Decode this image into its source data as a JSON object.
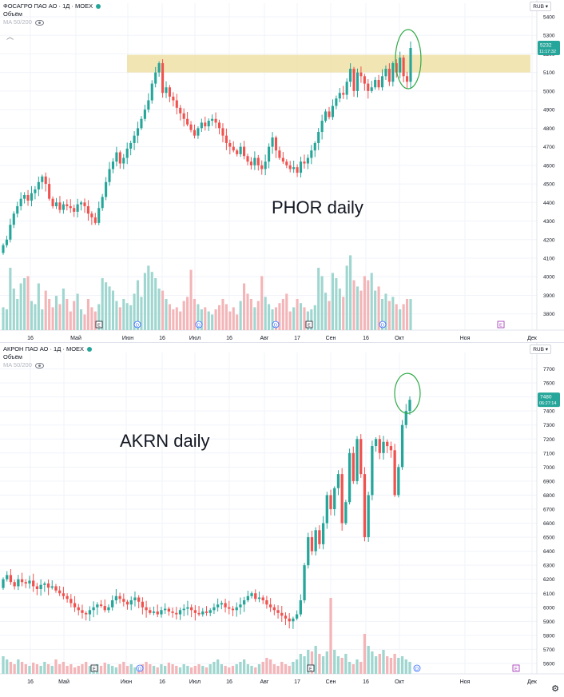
{
  "chart_data": [
    {
      "type": "candlestick",
      "ticker": "PHOR",
      "header_title": "ФОСАГРО ПАО АО · 1Д · MOEX",
      "volume_label": "Объём",
      "ma_label": "MA 50/200",
      "currency": "RUB",
      "price_label": "5232",
      "price_label_time": "11:17:32",
      "annotation_text": "PHOR daily",
      "highlight_zone": [
        5100,
        5195
      ],
      "ylim": [
        3760,
        5430
      ],
      "yticks": [
        "5400",
        "5300",
        "5200",
        "5100",
        "5000",
        "4900",
        "4800",
        "4700",
        "4600",
        "4500",
        "4400",
        "4300",
        "4200",
        "4100",
        "4000",
        "3900",
        "3800"
      ],
      "xticks": [
        "16",
        "Май",
        "Июн",
        "16",
        "Июл",
        "16",
        "Авг",
        "17",
        "Сен",
        "16",
        "Окт",
        "Ноя",
        "Дек"
      ],
      "event_markers": [
        "E",
        "D",
        "D",
        "D",
        "E",
        "D",
        "E"
      ],
      "close": [
        4170,
        4200,
        4280,
        4340,
        4380,
        4420,
        4440,
        4410,
        4450,
        4470,
        4510,
        4540,
        4500,
        4420,
        4380,
        4400,
        4360,
        4390,
        4380,
        4370,
        4350,
        4390,
        4400,
        4380,
        4340,
        4320,
        4290,
        4370,
        4430,
        4510,
        4580,
        4620,
        4670,
        4610,
        4640,
        4690,
        4720,
        4760,
        4800,
        4850,
        4900,
        4950,
        5040,
        5100,
        5150,
        4990,
        5020,
        4970,
        4950,
        4910,
        4880,
        4850,
        4820,
        4790,
        4760,
        4800,
        4830,
        4810,
        4840,
        4850,
        4830,
        4800,
        4760,
        4720,
        4700,
        4680,
        4660,
        4700,
        4650,
        4620,
        4600,
        4640,
        4600,
        4580,
        4620,
        4700,
        4750,
        4680,
        4640,
        4620,
        4600,
        4580,
        4590,
        4560,
        4620,
        4610,
        4640,
        4680,
        4720,
        4780,
        4840,
        4890,
        4860,
        4920,
        4960,
        4990,
        4980,
        5050,
        5120,
        5000,
        5100,
        5080,
        5040,
        5000,
        5020,
        5060,
        5020,
        5080,
        5120,
        5050,
        5150,
        5100,
        5180,
        5080,
        5050,
        5232
      ],
      "volume": [
        0.22,
        0.2,
        0.6,
        0.4,
        0.3,
        0.45,
        0.5,
        0.52,
        0.28,
        0.25,
        0.45,
        0.2,
        0.38,
        0.3,
        0.22,
        0.33,
        0.25,
        0.4,
        0.3,
        0.18,
        0.28,
        0.35,
        0.2,
        0.15,
        0.3,
        0.22,
        0.18,
        0.25,
        0.5,
        0.46,
        0.42,
        0.38,
        0.28,
        0.22,
        0.3,
        0.26,
        0.24,
        0.35,
        0.48,
        0.32,
        0.55,
        0.62,
        0.56,
        0.5,
        0.4,
        0.38,
        0.3,
        0.25,
        0.2,
        0.22,
        0.18,
        0.28,
        0.32,
        0.58,
        0.3,
        0.25,
        0.2,
        0.22,
        0.18,
        0.15,
        0.2,
        0.24,
        0.3,
        0.25,
        0.18,
        0.22,
        0.15,
        0.28,
        0.45,
        0.35,
        0.3,
        0.22,
        0.28,
        0.52,
        0.32,
        0.25,
        0.2,
        0.22,
        0.26,
        0.3,
        0.35,
        0.18,
        0.22,
        0.3,
        0.26,
        0.22,
        0.18,
        0.2,
        0.24,
        0.6,
        0.52,
        0.36,
        0.28,
        0.55,
        0.5,
        0.4,
        0.32,
        0.62,
        0.72,
        0.48,
        0.42,
        0.38,
        0.52,
        0.48,
        0.55,
        0.38,
        0.42,
        0.3,
        0.35,
        0.28,
        0.32,
        0.25,
        0.2,
        0.25,
        0.3,
        0.3
      ]
    },
    {
      "type": "candlestick",
      "ticker": "AKRN",
      "header_title": "АКРОН ПАО АО · 1Д · MOEX",
      "volume_label": "Объём",
      "ma_label": "MA 50/200",
      "currency": "RUB",
      "price_label": "7480",
      "price_label_time": "06:27:14",
      "annotation_text": "AKRN daily",
      "ylim": [
        5560,
        7760
      ],
      "yticks": [
        "7700",
        "7600",
        "7500",
        "7400",
        "7300",
        "7200",
        "7100",
        "7000",
        "6900",
        "6800",
        "6700",
        "6600",
        "6500",
        "6400",
        "6300",
        "6200",
        "6100",
        "6000",
        "5900",
        "5800",
        "5700",
        "5600"
      ],
      "xticks": [
        "16",
        "Май",
        "Июн",
        "16",
        "Июл",
        "16",
        "Авг",
        "17",
        "Сен",
        "16",
        "Окт",
        "Ноя",
        "Дек"
      ],
      "event_markers": [
        "E",
        "D",
        "E",
        "D",
        "E"
      ],
      "close": [
        6200,
        6230,
        6180,
        6150,
        6200,
        6180,
        6170,
        6190,
        6150,
        6130,
        6160,
        6170,
        6140,
        6150,
        6120,
        6100,
        6080,
        6060,
        6030,
        6000,
        5980,
        5960,
        5950,
        5980,
        6000,
        6020,
        6010,
        5980,
        6000,
        6050,
        6080,
        6060,
        6040,
        6020,
        6050,
        6070,
        6040,
        6000,
        5980,
        5960,
        5970,
        5950,
        5980,
        5990,
        5970,
        5960,
        5950,
        5980,
        5990,
        6000,
        5980,
        5960,
        5950,
        5970,
        5960,
        5980,
        6000,
        6020,
        6030,
        6000,
        5990,
        5980,
        6000,
        6020,
        6050,
        6080,
        6100,
        6060,
        6070,
        6050,
        6020,
        6000,
        5980,
        5960,
        5940,
        5920,
        5900,
        5920,
        5950,
        6050,
        6300,
        6500,
        6400,
        6550,
        6450,
        6600,
        6800,
        6700,
        6850,
        6950,
        6600,
        6750,
        7100,
        6900,
        7200,
        6950,
        6500,
        6800,
        7150,
        7200,
        7100,
        7180,
        7150,
        7120,
        6800,
        7000,
        7300,
        7400,
        7480
      ],
      "volume": [
        0.22,
        0.18,
        0.15,
        0.12,
        0.18,
        0.15,
        0.12,
        0.1,
        0.14,
        0.12,
        0.1,
        0.15,
        0.12,
        0.1,
        0.18,
        0.12,
        0.15,
        0.1,
        0.12,
        0.08,
        0.1,
        0.12,
        0.15,
        0.1,
        0.08,
        0.12,
        0.1,
        0.14,
        0.12,
        0.1,
        0.08,
        0.12,
        0.15,
        0.1,
        0.12,
        0.08,
        0.1,
        0.12,
        0.15,
        0.12,
        0.1,
        0.08,
        0.12,
        0.1,
        0.14,
        0.12,
        0.1,
        0.08,
        0.12,
        0.1,
        0.08,
        0.1,
        0.12,
        0.1,
        0.08,
        0.12,
        0.15,
        0.18,
        0.12,
        0.1,
        0.08,
        0.1,
        0.12,
        0.15,
        0.18,
        0.12,
        0.1,
        0.08,
        0.12,
        0.15,
        0.2,
        0.18,
        0.12,
        0.1,
        0.15,
        0.12,
        0.1,
        0.15,
        0.18,
        0.25,
        0.22,
        0.3,
        0.28,
        0.35,
        0.25,
        0.22,
        0.28,
        0.95,
        0.3,
        0.22,
        0.2,
        0.25,
        0.15,
        0.12,
        0.18,
        0.15,
        0.5,
        0.35,
        0.28,
        0.22,
        0.25,
        0.3,
        0.22,
        0.2,
        0.25,
        0.2,
        0.22,
        0.18,
        0.15
      ]
    }
  ]
}
